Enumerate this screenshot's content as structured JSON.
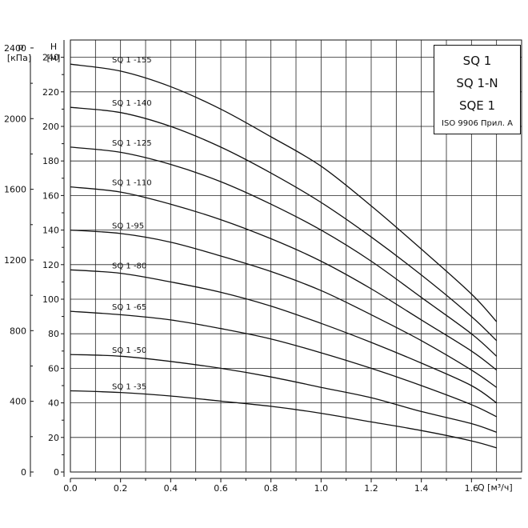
{
  "title_box": {
    "lines": [
      "SQ 1",
      "SQ 1-N",
      "SQE 1"
    ],
    "note": "ISO 9906 Прил. A"
  },
  "chart_data": {
    "type": "line",
    "xlabel": "Q [м³/ч]",
    "ylabel_left": "p [кПа]",
    "ylabel_right": "H [м]",
    "p_label": "p",
    "p_unit": "[кПа]",
    "h_label": "H",
    "h_unit": "[м]",
    "q_label": "Q [м³/ч]",
    "xlim": [
      0,
      1.8
    ],
    "ylim": [
      0,
      250
    ],
    "x_ticks": [
      "0.0",
      "0.2",
      "0.4",
      "0.6",
      "0.8",
      "1.0",
      "1.2",
      "1.4",
      "1.6"
    ],
    "x_tick_values": [
      0,
      0.2,
      0.4,
      0.6,
      0.8,
      1.0,
      1.2,
      1.4,
      1.6
    ],
    "h_ticks": [
      "0",
      "20",
      "40",
      "60",
      "80",
      "100",
      "120",
      "140",
      "160",
      "180",
      "200",
      "220",
      "240"
    ],
    "h_tick_values": [
      0,
      20,
      40,
      60,
      80,
      100,
      120,
      140,
      160,
      180,
      200,
      220,
      240
    ],
    "p_ticks": [
      "0",
      "400",
      "800",
      "1200",
      "1600",
      "2000",
      "2400"
    ],
    "p_tick_values": [
      0,
      400,
      800,
      1200,
      1600,
      2000,
      2400
    ],
    "grid": true,
    "series": [
      {
        "name": "SQ 1 -35",
        "x": [
          0,
          0.2,
          0.4,
          0.6,
          0.8,
          1.0,
          1.2,
          1.4,
          1.6,
          1.7
        ],
        "y": [
          47,
          46,
          44,
          41,
          38,
          34,
          29,
          24,
          18,
          14
        ]
      },
      {
        "name": "SQ 1 -50",
        "x": [
          0,
          0.2,
          0.4,
          0.6,
          0.8,
          1.0,
          1.2,
          1.4,
          1.6,
          1.7
        ],
        "y": [
          68,
          67,
          64,
          60,
          55,
          49,
          43,
          35,
          28,
          23
        ]
      },
      {
        "name": "SQ 1 -65",
        "x": [
          0,
          0.2,
          0.4,
          0.6,
          0.8,
          1.0,
          1.2,
          1.4,
          1.6,
          1.7
        ],
        "y": [
          93,
          91,
          88,
          83,
          77,
          69,
          60,
          50,
          39,
          32
        ]
      },
      {
        "name": "SQ 1 -80",
        "x": [
          0,
          0.2,
          0.4,
          0.6,
          0.8,
          1.0,
          1.2,
          1.4,
          1.6,
          1.7
        ],
        "y": [
          117,
          115,
          110,
          104,
          96,
          86,
          75,
          63,
          50,
          40
        ]
      },
      {
        "name": "SQ 1-95",
        "x": [
          0,
          0.2,
          0.4,
          0.6,
          0.8,
          1.0,
          1.2,
          1.4,
          1.6,
          1.7
        ],
        "y": [
          140,
          138,
          133,
          125,
          116,
          105,
          91,
          76,
          59,
          49
        ]
      },
      {
        "name": "SQ 1 -110",
        "x": [
          0,
          0.2,
          0.4,
          0.6,
          0.8,
          1.0,
          1.2,
          1.4,
          1.6,
          1.7
        ],
        "y": [
          165,
          162,
          155,
          146,
          135,
          122,
          106,
          88,
          70,
          59
        ]
      },
      {
        "name": "SQ 1 -125",
        "x": [
          0,
          0.2,
          0.4,
          0.6,
          0.8,
          1.0,
          1.2,
          1.4,
          1.6,
          1.7
        ],
        "y": [
          188,
          185,
          178,
          168,
          155,
          140,
          122,
          101,
          80,
          67
        ]
      },
      {
        "name": "SQ 1 -140",
        "x": [
          0,
          0.2,
          0.4,
          0.6,
          0.8,
          1.0,
          1.2,
          1.4,
          1.6,
          1.7
        ],
        "y": [
          211,
          208,
          200,
          188,
          173,
          156,
          136,
          114,
          90,
          76
        ]
      },
      {
        "name": "SQ 1 -155",
        "x": [
          0,
          0.2,
          0.4,
          0.6,
          0.8,
          1.0,
          1.2,
          1.4,
          1.6,
          1.7
        ],
        "y": [
          236,
          232,
          223,
          210,
          194,
          177,
          154,
          129,
          103,
          87
        ]
      }
    ]
  }
}
